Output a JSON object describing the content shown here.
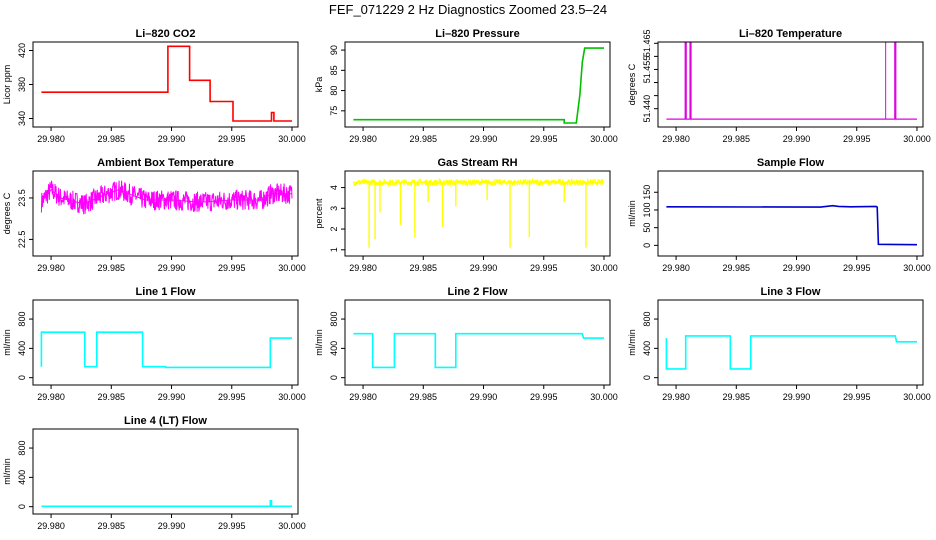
{
  "title": "FEF_071229  2 Hz Diagnostics Zoomed 23.5–24",
  "x_ticks": [
    "29.980",
    "29.985",
    "29.990",
    "29.995",
    "30.000"
  ],
  "chart_data": [
    {
      "type": "line",
      "title": "Li–820 CO2",
      "ylabel": "Licor ppm",
      "color": "#ff0000",
      "xlim": [
        29.9785,
        30.0005
      ],
      "ylim": [
        330,
        430
      ],
      "yticks": [
        340,
        380,
        420
      ],
      "series": [
        {
          "x": [
            29.9792,
            29.9897,
            29.9897,
            29.9915,
            29.9915,
            29.9932,
            29.9932,
            29.9951,
            29.9951,
            29.9983,
            29.9983,
            29.9985,
            29.9985,
            30.0
          ],
          "y": [
            371,
            371,
            425,
            425,
            385,
            385,
            360,
            360,
            337,
            337,
            347,
            347,
            337,
            337
          ]
        }
      ]
    },
    {
      "type": "line",
      "title": "Li–820 Pressure",
      "ylabel": "kPa",
      "color": "#00c000",
      "xlim": [
        29.9785,
        30.0005
      ],
      "ylim": [
        71,
        92
      ],
      "yticks": [
        75,
        80,
        85,
        90
      ],
      "series": [
        {
          "x": [
            29.9792,
            29.9967,
            29.9967,
            29.9977,
            29.998,
            29.9982,
            29.9984,
            30.0
          ],
          "y": [
            72.8,
            72.8,
            72,
            72,
            79,
            87,
            90.5,
            90.5
          ]
        }
      ]
    },
    {
      "type": "line",
      "title": "Li–820 Temperature",
      "ylabel": "degrees C",
      "color": "#e000e0",
      "xlim": [
        29.9785,
        30.0005
      ],
      "ylim": [
        51.433,
        51.4655
      ],
      "yticks": [
        51.44,
        51.445,
        51.45,
        51.455,
        51.46,
        51.465
      ],
      "ytick_labels": [
        "51.440",
        "",
        "",
        "51.455",
        "",
        "51.465"
      ],
      "baseline": 51.436,
      "spikes": [
        29.9808,
        29.9812,
        29.9974,
        29.9982
      ],
      "spike_top": 51.4655
    },
    {
      "type": "line",
      "title": "Ambient Box Temperature",
      "ylabel": "degrees C",
      "color": "#ff00ff",
      "xlim": [
        29.9785,
        30.0005
      ],
      "ylim": [
        22.1,
        24.15
      ],
      "yticks": [
        22.5,
        23.5
      ],
      "series": [
        {
          "x": [
            29.9792,
            29.98,
            29.9808,
            29.9828,
            29.9838,
            29.9856,
            29.9878,
            29.99,
            29.9925,
            29.995,
            29.9975,
            29.9983,
            30.0
          ],
          "y": [
            23.4,
            23.7,
            23.5,
            23.35,
            23.5,
            23.7,
            23.45,
            23.45,
            23.4,
            23.45,
            23.45,
            23.6,
            23.6
          ]
        }
      ],
      "noise": 0.25
    },
    {
      "type": "line",
      "title": "Gas Stream RH",
      "ylabel": "percent",
      "color": "#ffff00",
      "xlim": [
        29.9785,
        30.0005
      ],
      "ylim": [
        0.7,
        4.8
      ],
      "yticks": [
        1,
        2,
        3,
        4
      ],
      "series": [
        {
          "x": [
            29.9792,
            30.0
          ],
          "y": [
            4.25,
            4.25
          ]
        }
      ],
      "noise": 0.15,
      "dips": [
        [
          29.9805,
          1.1
        ],
        [
          29.981,
          1.5
        ],
        [
          29.9814,
          2.8
        ],
        [
          29.9831,
          2.2
        ],
        [
          29.9843,
          1.6
        ],
        [
          29.9854,
          3.3
        ],
        [
          29.9866,
          2.1
        ],
        [
          29.9877,
          3.1
        ],
        [
          29.9903,
          3.4
        ],
        [
          29.9922,
          1.1
        ],
        [
          29.9938,
          1.6
        ],
        [
          29.9967,
          3.3
        ],
        [
          29.9985,
          1.1
        ]
      ]
    },
    {
      "type": "line",
      "title": "Sample Flow",
      "ylabel": "ml/min",
      "color": "#0000cc",
      "xlim": [
        29.9785,
        30.0005
      ],
      "ylim": [
        -30,
        210
      ],
      "yticks": [
        0,
        50,
        100,
        150
      ],
      "series": [
        {
          "x": [
            29.9792,
            29.992,
            29.993,
            29.9935,
            29.9945,
            29.9966,
            29.9967,
            29.9968,
            30.0
          ],
          "y": [
            109,
            108,
            112,
            110,
            109,
            110,
            108,
            3,
            2
          ]
        }
      ]
    },
    {
      "type": "line",
      "title": "Line 1 Flow",
      "ylabel": "ml/min",
      "color": "#00ffff",
      "xlim": [
        29.9785,
        30.0005
      ],
      "ylim": [
        -100,
        1060
      ],
      "yticks": [
        0,
        400,
        800
      ],
      "series": [
        {
          "x": [
            29.9792,
            29.9792,
            29.9828,
            29.9828,
            29.9838,
            29.9838,
            29.9876,
            29.9876,
            29.9895,
            29.9895,
            29.9982,
            29.9982,
            30.0
          ],
          "y": [
            150,
            620,
            620,
            150,
            150,
            620,
            620,
            150,
            150,
            140,
            140,
            540,
            540
          ]
        }
      ]
    },
    {
      "type": "line",
      "title": "Line 2 Flow",
      "ylabel": "ml/min",
      "color": "#00ffff",
      "xlim": [
        29.9785,
        30.0005
      ],
      "ylim": [
        -100,
        1060
      ],
      "yticks": [
        0,
        400,
        800
      ],
      "series": [
        {
          "x": [
            29.9792,
            29.9808,
            29.9808,
            29.9826,
            29.9826,
            29.986,
            29.986,
            29.9877,
            29.9877,
            29.9982,
            29.9983,
            30.0
          ],
          "y": [
            600,
            600,
            140,
            140,
            600,
            600,
            140,
            140,
            600,
            600,
            540,
            540
          ]
        }
      ]
    },
    {
      "type": "line",
      "title": "Line 3 Flow",
      "ylabel": "ml/min",
      "color": "#00ffff",
      "xlim": [
        29.9785,
        30.0005
      ],
      "ylim": [
        -100,
        1060
      ],
      "yticks": [
        0,
        400,
        800
      ],
      "series": [
        {
          "x": [
            29.9792,
            29.9792,
            29.9808,
            29.9808,
            29.9845,
            29.9845,
            29.9862,
            29.9862,
            29.9982,
            29.9983,
            30.0
          ],
          "y": [
            540,
            120,
            120,
            570,
            570,
            120,
            120,
            570,
            570,
            490,
            490
          ]
        }
      ]
    },
    {
      "type": "line",
      "title": "Line 4 (LT) Flow",
      "ylabel": "ml/min",
      "color": "#00ffff",
      "xlim": [
        29.9785,
        30.0005
      ],
      "ylim": [
        -100,
        1060
      ],
      "yticks": [
        0,
        400,
        800
      ],
      "series": [
        {
          "x": [
            29.9792,
            29.9982,
            29.9982,
            29.9983,
            29.9983,
            30.0
          ],
          "y": [
            5,
            5,
            80,
            80,
            5,
            5
          ]
        }
      ]
    }
  ]
}
